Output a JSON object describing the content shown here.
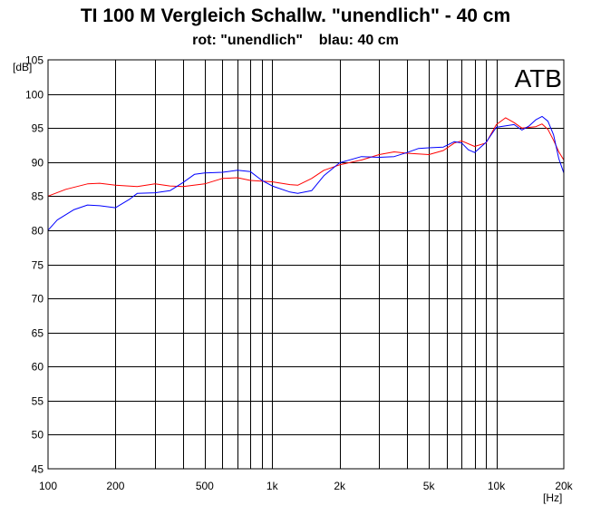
{
  "title": "TI 100 M Vergleich Schallw. \"unendlich\" - 40 cm",
  "subtitle": "rot: \"unendlich\"    blau: 40 cm",
  "chart_data": {
    "type": "line",
    "title": "TI 100 M Vergleich Schallw. \"unendlich\" - 40 cm",
    "subtitle": "rot: \"unendlich\"    blau: 40 cm",
    "xlabel": "[Hz]",
    "ylabel": "[dB]",
    "xscale": "log",
    "xlim": [
      100,
      20000
    ],
    "ylim": [
      45,
      105
    ],
    "grid": true,
    "watermark": "ATB",
    "x_ticks": [
      {
        "value": 100,
        "label": "100"
      },
      {
        "value": 200,
        "label": "200"
      },
      {
        "value": 500,
        "label": "500"
      },
      {
        "value": 1000,
        "label": "1k"
      },
      {
        "value": 2000,
        "label": "2k"
      },
      {
        "value": 5000,
        "label": "5k"
      },
      {
        "value": 10000,
        "label": "10k"
      },
      {
        "value": 20000,
        "label": "20k"
      }
    ],
    "y_ticks": [
      45,
      50,
      55,
      60,
      65,
      70,
      75,
      80,
      85,
      90,
      95,
      100,
      105
    ],
    "series": [
      {
        "color": "#ff0000",
        "points": [
          [
            100,
            85
          ],
          [
            120,
            86
          ],
          [
            150,
            86.8
          ],
          [
            170,
            86.9
          ],
          [
            200,
            86.6
          ],
          [
            250,
            86.4
          ],
          [
            300,
            86.8
          ],
          [
            350,
            86.5
          ],
          [
            400,
            86.4
          ],
          [
            500,
            86.8
          ],
          [
            600,
            87.6
          ],
          [
            700,
            87.7
          ],
          [
            800,
            87.3
          ],
          [
            1000,
            87.1
          ],
          [
            1200,
            86.7
          ],
          [
            1300,
            86.6
          ],
          [
            1500,
            87.6
          ],
          [
            1700,
            88.8
          ],
          [
            2000,
            89.6
          ],
          [
            2500,
            90.3
          ],
          [
            3000,
            91.1
          ],
          [
            3500,
            91.5
          ],
          [
            4000,
            91.3
          ],
          [
            5000,
            91.1
          ],
          [
            5800,
            91.7
          ],
          [
            6500,
            92.8
          ],
          [
            7000,
            93.1
          ],
          [
            8000,
            92.3
          ],
          [
            9000,
            92.8
          ],
          [
            10000,
            95.5
          ],
          [
            11000,
            96.5
          ],
          [
            12000,
            95.8
          ],
          [
            13000,
            95
          ],
          [
            15000,
            95.2
          ],
          [
            16000,
            95.6
          ],
          [
            17000,
            94.8
          ],
          [
            18000,
            93.2
          ],
          [
            19000,
            91.5
          ],
          [
            20000,
            90.3
          ]
        ]
      },
      {
        "color": "#0000ff",
        "points": [
          [
            100,
            80
          ],
          [
            110,
            81.5
          ],
          [
            130,
            83
          ],
          [
            150,
            83.7
          ],
          [
            170,
            83.6
          ],
          [
            200,
            83.3
          ],
          [
            230,
            84.5
          ],
          [
            250,
            85.4
          ],
          [
            300,
            85.5
          ],
          [
            350,
            85.8
          ],
          [
            400,
            87
          ],
          [
            450,
            88.2
          ],
          [
            500,
            88.4
          ],
          [
            600,
            88.5
          ],
          [
            700,
            88.8
          ],
          [
            800,
            88.6
          ],
          [
            900,
            87.3
          ],
          [
            1000,
            86.5
          ],
          [
            1200,
            85.6
          ],
          [
            1300,
            85.4
          ],
          [
            1500,
            85.8
          ],
          [
            1700,
            88
          ],
          [
            2000,
            89.9
          ],
          [
            2500,
            90.8
          ],
          [
            3000,
            90.7
          ],
          [
            3500,
            90.8
          ],
          [
            4000,
            91.4
          ],
          [
            4500,
            92
          ],
          [
            5000,
            92.1
          ],
          [
            5800,
            92.2
          ],
          [
            6500,
            93
          ],
          [
            7000,
            92.8
          ],
          [
            7500,
            91.8
          ],
          [
            8000,
            91.4
          ],
          [
            9000,
            92.9
          ],
          [
            10000,
            95.1
          ],
          [
            12000,
            95.5
          ],
          [
            13000,
            94.7
          ],
          [
            14000,
            95.3
          ],
          [
            15000,
            96.2
          ],
          [
            16000,
            96.7
          ],
          [
            17000,
            96
          ],
          [
            18000,
            94
          ],
          [
            19000,
            90.5
          ],
          [
            20000,
            88.4
          ]
        ]
      }
    ]
  }
}
